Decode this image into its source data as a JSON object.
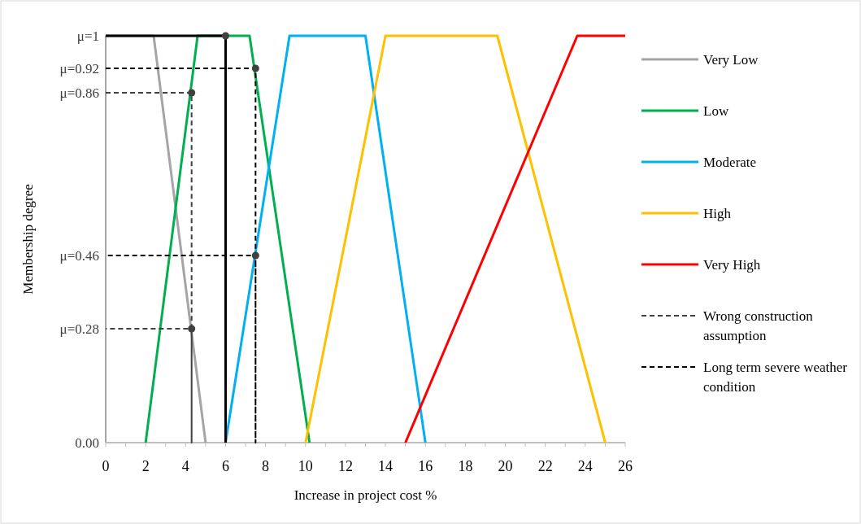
{
  "chart_data": {
    "type": "line",
    "xlabel": "Increase in project cost %",
    "ylabel": "Membership degree",
    "xlim": [
      0,
      26
    ],
    "ylim": [
      0,
      1
    ],
    "xticks": [
      0,
      {
        "value": 1,
        "label": null
      },
      2,
      {
        "value": 3,
        "label": null
      },
      4,
      {
        "value": 5,
        "label": null
      },
      6,
      {
        "value": 7,
        "label": null
      },
      8,
      {
        "value": 9,
        "label": null
      },
      10,
      {
        "value": 11,
        "label": null
      },
      12,
      {
        "value": 13,
        "label": null
      },
      14,
      {
        "value": 15,
        "label": null
      },
      16,
      {
        "value": 17,
        "label": null
      },
      18,
      {
        "value": 19,
        "label": null
      },
      20,
      {
        "value": 21,
        "label": null
      },
      22,
      {
        "value": 23,
        "label": null
      },
      24,
      {
        "value": 25,
        "label": null
      },
      26
    ],
    "yticks": [
      {
        "value": 0,
        "label": "0.00"
      },
      {
        "value": 0.28,
        "label": "μ=0.28"
      },
      {
        "value": 0.46,
        "label": "μ=0.46"
      },
      {
        "value": 0.86,
        "label": "μ=0.86"
      },
      {
        "value": 0.92,
        "label": "μ=0.92"
      },
      {
        "value": 1,
        "label": "μ=1"
      }
    ],
    "grid": false,
    "legend": "right",
    "marker": "none",
    "series": [
      {
        "name": "Very Low",
        "color": "#a5a5a5",
        "x": [
          0,
          2.4,
          5
        ],
        "values": [
          1,
          1,
          0
        ]
      },
      {
        "name": "Low",
        "color": "#00b050",
        "x": [
          2,
          4.6,
          7.2,
          10.2
        ],
        "values": [
          0,
          1,
          1,
          0
        ]
      },
      {
        "name": "Moderate",
        "color": "#00b0f0",
        "x": [
          6,
          9.2,
          13,
          16
        ],
        "values": [
          0,
          1,
          1,
          0
        ]
      },
      {
        "name": "High",
        "color": "#ffc000",
        "x": [
          10,
          14,
          19.6,
          25
        ],
        "values": [
          0,
          1,
          1,
          0
        ]
      },
      {
        "name": "Very High",
        "color": "#ff0000",
        "x": [
          15,
          23.6,
          26
        ],
        "values": [
          0,
          1,
          1
        ]
      },
      {
        "name": "Wrong construction assumption",
        "color": "#404040",
        "line_style": "dashed",
        "x": [
          0,
          4.3,
          4.3,
          4.3,
          0
        ],
        "values": [
          0.86,
          0.86,
          0,
          0.28,
          0.28
        ]
      },
      {
        "name": "Long term severe weather condition",
        "color": "#000000",
        "line_style": "dashed",
        "x": [
          0,
          7.5,
          7.5,
          7.5,
          0
        ],
        "values": [
          0.92,
          0.92,
          0,
          0.46,
          0.46
        ]
      },
      {
        "color": "#000000",
        "x": [
          0,
          6,
          6
        ],
        "values": [
          1,
          1,
          0
        ]
      },
      {
        "type": "scatter",
        "marker": "circle",
        "color": "#404040",
        "x": [
          6,
          4.3,
          4.3,
          7.5,
          7.5
        ],
        "values": [
          1,
          0.86,
          0.28,
          0.92,
          0.46
        ]
      }
    ]
  }
}
